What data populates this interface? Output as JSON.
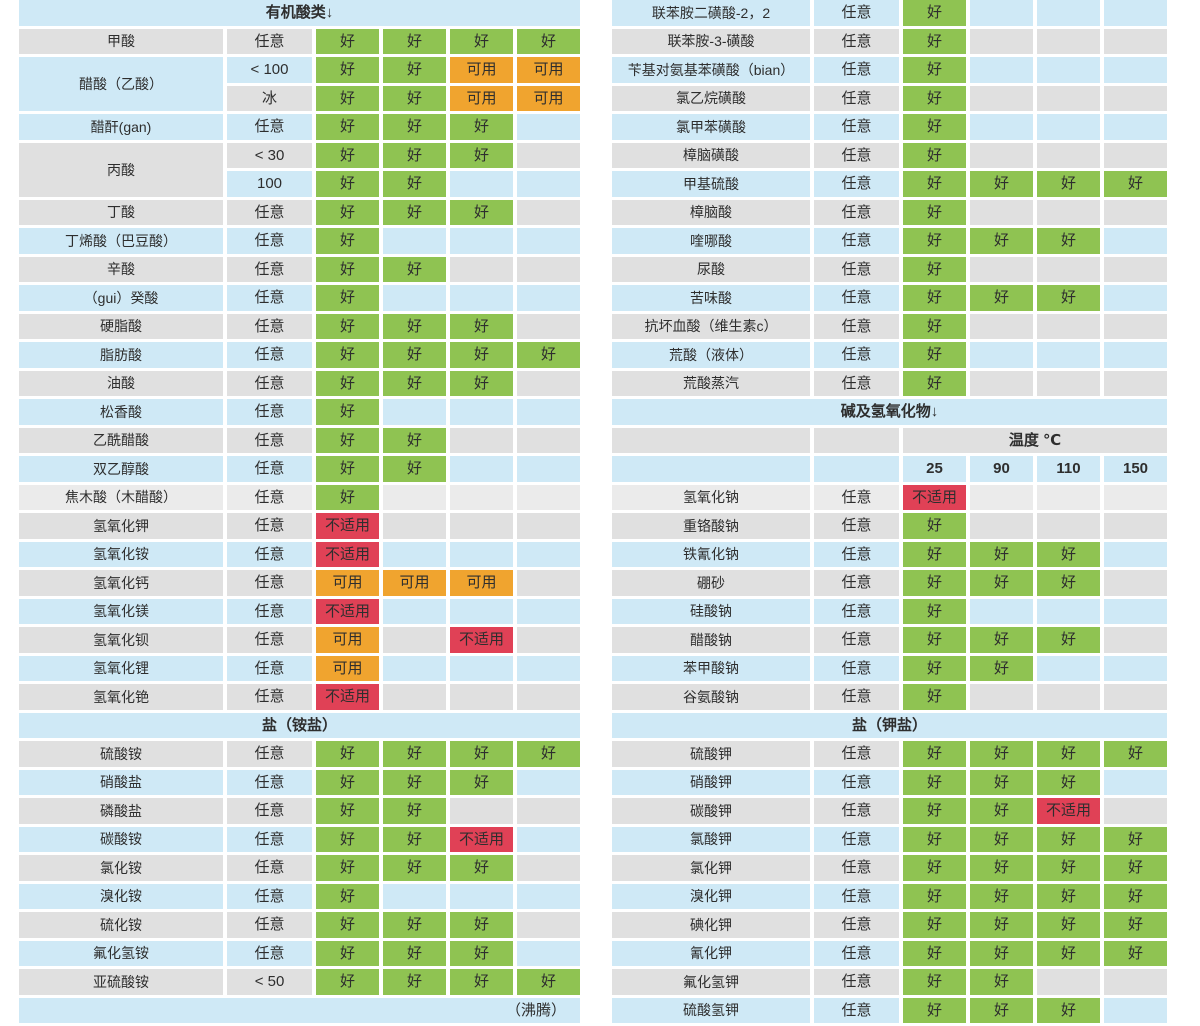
{
  "legend": {
    "good": "好",
    "usable": "可用",
    "unsuitable": "不适用"
  },
  "palette": {
    "row_blue": "#cfe9f6",
    "row_gray": "#e0e0e0",
    "row_lightgray": "#ebebeb",
    "good_green": "#8fc352",
    "usable_orange": "#f0a42f",
    "unsuitable_red": "#e04156",
    "text": "#2e2e2e",
    "grid_white": "#ffffff"
  },
  "left_table": {
    "rows": [
      {
        "type": "section",
        "label": "有机酸类↓",
        "bg": "blue"
      },
      {
        "type": "data",
        "name": "甲酸",
        "cond": "任意",
        "bg": "gray",
        "ratings": [
          "g",
          "g",
          "g",
          "g"
        ]
      },
      {
        "type": "data",
        "name": "醋酸（乙酸）",
        "name_span": 2,
        "name_bg": "blue",
        "cond": "< 100",
        "bg": "blue",
        "ratings": [
          "g",
          "g",
          "u",
          "u"
        ]
      },
      {
        "type": "data",
        "name": null,
        "cond": "冰",
        "bg": "gray",
        "ratings": [
          "g",
          "g",
          "u",
          "u"
        ]
      },
      {
        "type": "data",
        "name": "醋酐(gan)",
        "cond": "任意",
        "bg": "blue",
        "ratings": [
          "g",
          "g",
          "g",
          ""
        ]
      },
      {
        "type": "data",
        "name": "丙酸",
        "name_span": 2,
        "name_bg": "gray",
        "cond": "< 30",
        "bg": "gray",
        "ratings": [
          "g",
          "g",
          "g",
          ""
        ]
      },
      {
        "type": "data",
        "name": null,
        "cond": "100",
        "bg": "blue",
        "ratings": [
          "g",
          "g",
          "",
          ""
        ]
      },
      {
        "type": "data",
        "name": "丁酸",
        "cond": "任意",
        "bg": "gray",
        "ratings": [
          "g",
          "g",
          "g",
          ""
        ]
      },
      {
        "type": "data",
        "name": "丁烯酸（巴豆酸）",
        "cond": "任意",
        "bg": "blue",
        "ratings": [
          "g",
          "",
          "",
          ""
        ]
      },
      {
        "type": "data",
        "name": "辛酸",
        "cond": "任意",
        "bg": "gray",
        "ratings": [
          "g",
          "g",
          "",
          ""
        ]
      },
      {
        "type": "data",
        "name": "（gui）癸酸",
        "cond": "任意",
        "bg": "blue",
        "ratings": [
          "g",
          "",
          "",
          ""
        ]
      },
      {
        "type": "data",
        "name": "硬脂酸",
        "cond": "任意",
        "bg": "gray",
        "ratings": [
          "g",
          "g",
          "g",
          ""
        ]
      },
      {
        "type": "data",
        "name": "脂肪酸",
        "cond": "任意",
        "bg": "blue",
        "ratings": [
          "g",
          "g",
          "g",
          "g"
        ]
      },
      {
        "type": "data",
        "name": "油酸",
        "cond": "任意",
        "bg": "gray",
        "ratings": [
          "g",
          "g",
          "g",
          ""
        ]
      },
      {
        "type": "data",
        "name": "松香酸",
        "cond": "任意",
        "bg": "blue",
        "ratings": [
          "g",
          "",
          "",
          ""
        ]
      },
      {
        "type": "data",
        "name": "乙酰醋酸",
        "cond": "任意",
        "bg": "gray",
        "ratings": [
          "g",
          "g",
          "",
          ""
        ]
      },
      {
        "type": "data",
        "name": "双乙醇酸",
        "cond": "任意",
        "bg": "blue",
        "ratings": [
          "g",
          "g",
          "",
          ""
        ]
      },
      {
        "type": "data",
        "name": "焦木酸（木醋酸）",
        "cond": "任意",
        "bg": "lightgray",
        "ratings": [
          "g",
          "",
          "",
          ""
        ]
      },
      {
        "type": "data",
        "name": "氢氧化钾",
        "cond": "任意",
        "bg": "gray",
        "ratings": [
          "x",
          "",
          "",
          ""
        ]
      },
      {
        "type": "data",
        "name": "氢氧化铵",
        "cond": "任意",
        "bg": "blue",
        "ratings": [
          "x",
          "",
          "",
          ""
        ]
      },
      {
        "type": "data",
        "name": "氢氧化钙",
        "cond": "任意",
        "bg": "gray",
        "ratings": [
          "u",
          "u",
          "u",
          ""
        ]
      },
      {
        "type": "data",
        "name": "氢氧化镁",
        "cond": "任意",
        "bg": "blue",
        "ratings": [
          "x",
          "",
          "",
          ""
        ]
      },
      {
        "type": "data",
        "name": "氢氧化钡",
        "cond": "任意",
        "bg": "gray",
        "ratings": [
          "u",
          "",
          "x",
          ""
        ]
      },
      {
        "type": "data",
        "name": "氢氧化锂",
        "cond": "任意",
        "bg": "blue",
        "ratings": [
          "u",
          "",
          "",
          ""
        ]
      },
      {
        "type": "data",
        "name": "氢氧化铯",
        "cond": "任意",
        "bg": "gray",
        "ratings": [
          "x",
          "",
          "",
          ""
        ]
      },
      {
        "type": "section",
        "label": "盐（铵盐）",
        "bg": "blue"
      },
      {
        "type": "data",
        "name": "硫酸铵",
        "cond": "任意",
        "bg": "gray",
        "ratings": [
          "g",
          "g",
          "g",
          "g"
        ]
      },
      {
        "type": "data",
        "name": "硝酸盐",
        "cond": "任意",
        "bg": "blue",
        "ratings": [
          "g",
          "g",
          "g",
          ""
        ]
      },
      {
        "type": "data",
        "name": "磷酸盐",
        "cond": "任意",
        "bg": "gray",
        "ratings": [
          "g",
          "g",
          "",
          ""
        ]
      },
      {
        "type": "data",
        "name": "碳酸铵",
        "cond": "任意",
        "bg": "blue",
        "ratings": [
          "g",
          "g",
          "x",
          ""
        ]
      },
      {
        "type": "data",
        "name": "氯化铵",
        "cond": "任意",
        "bg": "gray",
        "ratings": [
          "g",
          "g",
          "g",
          ""
        ]
      },
      {
        "type": "data",
        "name": "溴化铵",
        "cond": "任意",
        "bg": "blue",
        "ratings": [
          "g",
          "",
          "",
          ""
        ]
      },
      {
        "type": "data",
        "name": "硫化铵",
        "cond": "任意",
        "bg": "gray",
        "ratings": [
          "g",
          "g",
          "g",
          ""
        ]
      },
      {
        "type": "data",
        "name": "氟化氢铵",
        "cond": "任意",
        "bg": "blue",
        "ratings": [
          "g",
          "g",
          "g",
          ""
        ]
      },
      {
        "type": "data",
        "name": "亚硫酸铵",
        "cond": "< 50",
        "bg": "gray",
        "ratings": [
          "g",
          "g",
          "g",
          "g"
        ]
      },
      {
        "type": "footer",
        "label": "（沸腾）",
        "bg": "blue"
      }
    ]
  },
  "right_table": {
    "rows": [
      {
        "type": "data",
        "name": "联苯胺二磺酸-2，2",
        "cond": "任意",
        "bg": "blue",
        "ratings": [
          "g",
          "",
          "",
          ""
        ]
      },
      {
        "type": "data",
        "name": "联苯胺-3-磺酸",
        "cond": "任意",
        "bg": "gray",
        "ratings": [
          "g",
          "",
          "",
          ""
        ]
      },
      {
        "type": "data",
        "name": "苄基对氨基苯磺酸（bian）",
        "cond": "任意",
        "bg": "blue",
        "ratings": [
          "g",
          "",
          "",
          ""
        ]
      },
      {
        "type": "data",
        "name": "氯乙烷磺酸",
        "cond": "任意",
        "bg": "gray",
        "ratings": [
          "g",
          "",
          "",
          ""
        ]
      },
      {
        "type": "data",
        "name": "氯甲苯磺酸",
        "cond": "任意",
        "bg": "blue",
        "ratings": [
          "g",
          "",
          "",
          ""
        ]
      },
      {
        "type": "data",
        "name": "樟脑磺酸",
        "cond": "任意",
        "bg": "gray",
        "ratings": [
          "g",
          "",
          "",
          ""
        ]
      },
      {
        "type": "data",
        "name": "甲基硫酸",
        "cond": "任意",
        "bg": "blue",
        "ratings": [
          "g",
          "g",
          "g",
          "g"
        ]
      },
      {
        "type": "data",
        "name": "樟脑酸",
        "cond": "任意",
        "bg": "gray",
        "ratings": [
          "g",
          "",
          "",
          ""
        ]
      },
      {
        "type": "data",
        "name": "喹哪酸",
        "cond": "任意",
        "bg": "blue",
        "ratings": [
          "g",
          "g",
          "g",
          ""
        ]
      },
      {
        "type": "data",
        "name": "尿酸",
        "cond": "任意",
        "bg": "gray",
        "ratings": [
          "g",
          "",
          "",
          ""
        ]
      },
      {
        "type": "data",
        "name": "苦味酸",
        "cond": "任意",
        "bg": "blue",
        "ratings": [
          "g",
          "g",
          "g",
          ""
        ]
      },
      {
        "type": "data",
        "name": "抗坏血酸（维生素c）",
        "cond": "任意",
        "bg": "gray",
        "ratings": [
          "g",
          "",
          "",
          ""
        ]
      },
      {
        "type": "data",
        "name": "荒酸（液体）",
        "cond": "任意",
        "bg": "blue",
        "ratings": [
          "g",
          "",
          "",
          ""
        ]
      },
      {
        "type": "data",
        "name": "荒酸蒸汽",
        "cond": "任意",
        "bg": "gray",
        "ratings": [
          "g",
          "",
          "",
          ""
        ]
      },
      {
        "type": "section",
        "label": "碱及氢氧化物↓",
        "bg": "blue"
      },
      {
        "type": "temp_label",
        "label": "温度 ℃",
        "bg": "gray"
      },
      {
        "type": "temp_values",
        "values": [
          "25",
          "90",
          "110",
          "150"
        ],
        "bg": "blue"
      },
      {
        "type": "data",
        "name": "氢氧化钠",
        "cond": "任意",
        "bg": "lightgray",
        "ratings": [
          "x",
          "",
          "",
          ""
        ]
      },
      {
        "type": "data",
        "name": "重铬酸钠",
        "cond": "任意",
        "bg": "gray",
        "ratings": [
          "g",
          "",
          "",
          ""
        ]
      },
      {
        "type": "data",
        "name": "铁氰化钠",
        "cond": "任意",
        "bg": "blue",
        "ratings": [
          "g",
          "g",
          "g",
          ""
        ]
      },
      {
        "type": "data",
        "name": "硼砂",
        "cond": "任意",
        "bg": "gray",
        "ratings": [
          "g",
          "g",
          "g",
          ""
        ]
      },
      {
        "type": "data",
        "name": "硅酸钠",
        "cond": "任意",
        "bg": "blue",
        "ratings": [
          "g",
          "",
          "",
          ""
        ]
      },
      {
        "type": "data",
        "name": "醋酸钠",
        "cond": "任意",
        "bg": "gray",
        "ratings": [
          "g",
          "g",
          "g",
          ""
        ]
      },
      {
        "type": "data",
        "name": "苯甲酸钠",
        "cond": "任意",
        "bg": "blue",
        "ratings": [
          "g",
          "g",
          "",
          ""
        ]
      },
      {
        "type": "data",
        "name": "谷氨酸钠",
        "cond": "任意",
        "bg": "gray",
        "ratings": [
          "g",
          "",
          "",
          ""
        ]
      },
      {
        "type": "section",
        "label": "盐（钾盐）",
        "bg": "blue"
      },
      {
        "type": "data",
        "name": "硫酸钾",
        "cond": "任意",
        "bg": "gray",
        "ratings": [
          "g",
          "g",
          "g",
          "g"
        ]
      },
      {
        "type": "data",
        "name": "硝酸钾",
        "cond": "任意",
        "bg": "blue",
        "ratings": [
          "g",
          "g",
          "g",
          ""
        ]
      },
      {
        "type": "data",
        "name": "碳酸钾",
        "cond": "任意",
        "bg": "gray",
        "ratings": [
          "g",
          "g",
          "x",
          ""
        ]
      },
      {
        "type": "data",
        "name": "氯酸钾",
        "cond": "任意",
        "bg": "blue",
        "ratings": [
          "g",
          "g",
          "g",
          "g"
        ]
      },
      {
        "type": "data",
        "name": "氯化钾",
        "cond": "任意",
        "bg": "gray",
        "ratings": [
          "g",
          "g",
          "g",
          "g"
        ]
      },
      {
        "type": "data",
        "name": "溴化钾",
        "cond": "任意",
        "bg": "blue",
        "ratings": [
          "g",
          "g",
          "g",
          "g"
        ]
      },
      {
        "type": "data",
        "name": "碘化钾",
        "cond": "任意",
        "bg": "gray",
        "ratings": [
          "g",
          "g",
          "g",
          "g"
        ]
      },
      {
        "type": "data",
        "name": "氰化钾",
        "cond": "任意",
        "bg": "blue",
        "ratings": [
          "g",
          "g",
          "g",
          "g"
        ]
      },
      {
        "type": "data",
        "name": "氟化氢钾",
        "cond": "任意",
        "bg": "gray",
        "ratings": [
          "g",
          "g",
          "",
          ""
        ]
      },
      {
        "type": "data",
        "name": "硫酸氢钾",
        "cond": "任意",
        "bg": "blue",
        "ratings": [
          "g",
          "g",
          "g",
          ""
        ]
      }
    ]
  }
}
